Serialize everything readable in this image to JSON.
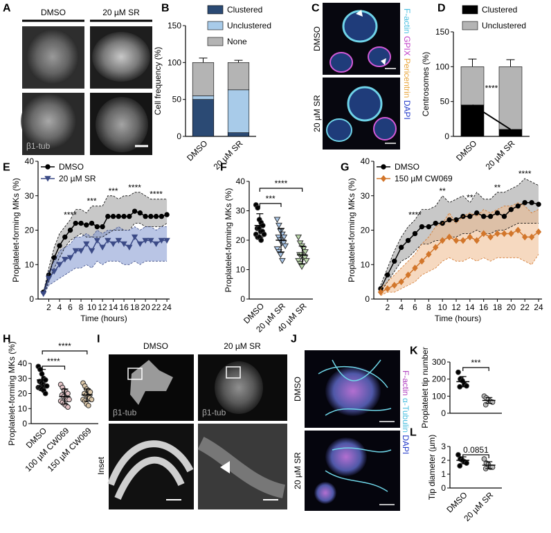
{
  "panel_labels": [
    "A",
    "B",
    "C",
    "D",
    "E",
    "F",
    "G",
    "H",
    "I",
    "J",
    "K",
    "L"
  ],
  "images": {
    "A": {
      "columns": [
        "DMSO",
        "20 µM SR"
      ],
      "stain": "β1-tub"
    },
    "C": {
      "rows": [
        "DMSO",
        "20 µM SR"
      ],
      "stains": [
        "F-actin",
        "GPIX",
        "Pericentrin",
        "DAPI"
      ]
    },
    "I": {
      "columns": [
        "DMSO",
        "20 µM SR"
      ],
      "stain": "β1-tub",
      "inset": "Inset"
    },
    "J": {
      "rows": [
        "DMSO",
        "20 µM SR"
      ],
      "stains": [
        "F-actin",
        "α-Tubulin",
        "DAPI"
      ]
    }
  },
  "chart_data": [
    {
      "type": "stacked_bar",
      "ylabel": "Cell frequency (%)",
      "categories": [
        "DMSO",
        "20 µM SR"
      ],
      "series": [
        {
          "name": "Clustered",
          "color": "#2b4a74",
          "values": [
            50,
            5
          ],
          "errors": [
            5,
            4
          ]
        },
        {
          "name": "Unclustered",
          "color": "#a8cbe9",
          "values": [
            5,
            58
          ],
          "errors": [
            4,
            6
          ]
        },
        {
          "name": "None",
          "color": "#b4b4b4",
          "values": [
            45,
            37
          ],
          "errors": [
            6,
            3
          ]
        }
      ],
      "ylim": [
        0,
        150
      ],
      "yticks": [
        0,
        50,
        100,
        150
      ]
    },
    {
      "type": "stacked_bar",
      "ylabel": "Centrosomes (%)",
      "categories": [
        "DMSO",
        "20 µM SR"
      ],
      "series": [
        {
          "name": "Clustered",
          "color": "#000000",
          "values": [
            45,
            10
          ],
          "errors": [
            11,
            10
          ]
        },
        {
          "name": "Unclustered",
          "color": "#b4b4b4",
          "values": [
            55,
            90
          ],
          "errors": [
            11,
            10
          ]
        }
      ],
      "annotation": "****",
      "connector": true,
      "ylim": [
        0,
        150
      ],
      "yticks": [
        0,
        50,
        100,
        150
      ]
    },
    {
      "type": "line",
      "xlabel": "Time (hours)",
      "ylabel": "Proplatelet-forming MKs (%)",
      "x": [
        1,
        2,
        3,
        4,
        5,
        6,
        7,
        8,
        9,
        10,
        11,
        12,
        13,
        14,
        15,
        16,
        17,
        18,
        19,
        20,
        21,
        22,
        23,
        24
      ],
      "series": [
        {
          "name": "DMSO",
          "color": "#000000",
          "band_color": "#9a9a9a",
          "marker": "circle",
          "values": [
            2,
            7,
            12,
            15.5,
            18,
            20,
            22,
            22,
            21.5,
            22,
            21,
            21,
            24,
            24,
            24,
            24,
            24,
            25.5,
            25,
            24,
            24,
            24,
            24,
            24.5
          ],
          "upper": [
            2,
            9,
            15,
            19,
            21,
            23,
            26,
            26,
            25,
            27,
            27,
            27,
            30,
            30,
            29,
            30,
            30,
            31,
            31,
            30,
            29,
            29,
            29,
            29
          ],
          "lower": [
            1,
            5,
            9,
            12,
            15,
            17,
            18,
            19,
            18,
            18,
            18,
            18,
            19,
            20,
            20,
            20,
            20,
            22,
            22,
            21,
            21,
            21,
            21,
            22
          ]
        },
        {
          "name": "20 µM SR",
          "color": "#3b4a86",
          "band_color": "#7f95cf",
          "marker": "triangle-down",
          "values": [
            1.5,
            6,
            8,
            10,
            11.5,
            12,
            14,
            14,
            16,
            14,
            17,
            15,
            17,
            16,
            17,
            16,
            15,
            18,
            16,
            17,
            17,
            16,
            17,
            17
          ],
          "upper": [
            2,
            8,
            11,
            14,
            15,
            16,
            18,
            18,
            19,
            18,
            20,
            19,
            20,
            20,
            21,
            20,
            20,
            21,
            20,
            21,
            21,
            20,
            21,
            21
          ],
          "lower": [
            1,
            4,
            5,
            6,
            7,
            8,
            9,
            9,
            10,
            9,
            11,
            10,
            11,
            11,
            11,
            10,
            10,
            11,
            10,
            11,
            11,
            11,
            11,
            11
          ]
        }
      ],
      "annotations": [
        "****",
        "***",
        "***",
        "****",
        "****"
      ],
      "xlim": [
        0,
        24.5
      ],
      "xticks": [
        2,
        4,
        6,
        8,
        10,
        12,
        14,
        16,
        18,
        20,
        22,
        24
      ],
      "ylim": [
        0,
        40
      ],
      "yticks": [
        0,
        10,
        20,
        30,
        40
      ]
    },
    {
      "type": "dot",
      "ylabel": "Proplatelet-forming MKs (%)",
      "categories": [
        "DMSO",
        "20 µM SR",
        "40 µM SR"
      ],
      "points": [
        [
          32,
          31,
          27,
          26,
          25,
          24,
          24,
          23,
          23,
          22,
          22,
          21,
          21,
          20
        ],
        [
          27,
          25,
          23,
          22,
          21,
          21,
          20,
          19,
          19,
          18,
          17,
          16,
          15,
          13
        ],
        [
          21,
          19,
          18,
          17,
          16,
          15,
          15,
          14,
          14,
          13,
          13,
          12,
          11
        ]
      ],
      "means": [
        25,
        20,
        15
      ],
      "sds": [
        4,
        4,
        3
      ],
      "colors": [
        "#000000",
        "#a9c6e8",
        "#b9d7a8"
      ],
      "markers": [
        "circle",
        "triangle-down",
        "triangle-down"
      ],
      "comparisons": [
        "***",
        "****"
      ],
      "ylim": [
        0,
        40
      ],
      "yticks": [
        0,
        10,
        20,
        30,
        40
      ]
    },
    {
      "type": "line",
      "xlabel": "Time (hours)",
      "ylabel": "Proplatelet-forming MKs (%)",
      "x": [
        1,
        2,
        3,
        4,
        5,
        6,
        7,
        8,
        9,
        10,
        11,
        12,
        13,
        14,
        15,
        16,
        17,
        18,
        19,
        20,
        21,
        22,
        23,
        24
      ],
      "series": [
        {
          "name": "DMSO",
          "color": "#000000",
          "band_color": "#9a9a9a",
          "marker": "circle",
          "values": [
            3,
            7,
            11,
            15,
            17,
            19,
            21,
            21,
            22,
            22,
            23,
            23,
            24,
            24,
            25,
            24,
            24,
            25,
            24,
            26,
            27,
            28,
            28,
            27.5
          ],
          "upper": [
            4,
            9,
            14,
            18,
            21,
            23,
            26,
            26,
            27,
            30,
            28,
            29,
            30,
            28,
            31,
            29,
            29,
            31,
            31,
            32,
            33,
            35,
            34,
            33
          ],
          "lower": [
            2,
            5,
            8,
            11,
            12,
            14,
            16,
            16,
            17,
            17,
            18,
            18,
            19,
            19,
            20,
            19,
            19,
            20,
            20,
            21,
            22,
            22,
            22,
            22
          ]
        },
        {
          "name": "150 µM CW069",
          "color": "#d2762b",
          "band_color": "#efb98c",
          "marker": "diamond",
          "values": [
            2,
            3,
            4,
            5,
            7,
            9,
            11,
            13,
            15,
            17,
            18,
            17,
            17,
            18,
            17,
            19,
            18,
            19,
            19,
            19,
            20,
            18,
            18,
            19.5
          ],
          "upper": [
            3,
            5,
            7,
            9,
            11,
            13,
            16,
            18,
            21,
            22,
            25,
            22,
            24,
            25,
            24,
            26,
            25,
            26,
            27,
            27,
            28,
            27,
            25,
            26
          ],
          "lower": [
            1,
            2,
            2,
            3,
            4,
            5,
            7,
            8,
            9,
            11,
            12,
            11,
            11,
            12,
            11,
            12,
            11,
            12,
            12,
            12,
            12,
            11,
            10,
            13
          ]
        }
      ],
      "annotations": [
        "****",
        "**",
        "**",
        "**",
        "****"
      ],
      "xlim": [
        0,
        24.5
      ],
      "xticks": [
        2,
        4,
        6,
        8,
        10,
        12,
        14,
        16,
        18,
        20,
        22,
        24
      ],
      "ylim": [
        0,
        40
      ],
      "yticks": [
        0,
        10,
        20,
        30,
        40
      ]
    },
    {
      "type": "dot",
      "ylabel": "Proplatelet-forming MKs (%)",
      "categories": [
        "DMSO",
        "100 µM CW069",
        "150 µM CW069"
      ],
      "points": [
        [
          38,
          36,
          33,
          30,
          29,
          28,
          27,
          26,
          25,
          25,
          24,
          24,
          23,
          22,
          20
        ],
        [
          26,
          24,
          22,
          21,
          20,
          19,
          18,
          17,
          16,
          16,
          15,
          14,
          13,
          12,
          11
        ],
        [
          27,
          25,
          23,
          22,
          21,
          20,
          19,
          18,
          17,
          16,
          16,
          15,
          13,
          12
        ]
      ],
      "means": [
        29,
        18,
        19
      ],
      "sds": [
        7,
        5,
        4
      ],
      "colors": [
        "#000000",
        "#e3c2c5",
        "#dcc7a8"
      ],
      "markers": [
        "circle",
        "circle",
        "circle"
      ],
      "comparisons": [
        "****",
        "****"
      ],
      "ylim": [
        0,
        40
      ],
      "yticks": [
        0,
        10,
        20,
        30,
        40
      ]
    },
    {
      "type": "dot",
      "ylabel": "Proplatelet tip number",
      "points": [
        [
          240,
          200,
          190,
          170,
          160,
          155
        ],
        [
          100,
          90,
          80,
          70,
          65,
          50
        ]
      ],
      "means": [
        185,
        75
      ],
      "sds": [
        30,
        17
      ],
      "colors": [
        "#000000",
        "#bbbbbb"
      ],
      "markers": [
        "circle",
        "circle"
      ],
      "comparisons": [
        "***"
      ],
      "ylim": [
        0,
        300
      ],
      "yticks": [
        0,
        100,
        200,
        300
      ]
    },
    {
      "type": "dot",
      "ylabel": "Tip diameter (µm)",
      "categories": [
        "DMSO",
        "20 µM SR"
      ],
      "points": [
        [
          2.4,
          2.1,
          2.0,
          1.9,
          1.8,
          1.6
        ],
        [
          2.1,
          1.8,
          1.7,
          1.5,
          1.5,
          1.4
        ]
      ],
      "means": [
        2.0,
        1.65
      ],
      "sds": [
        0.25,
        0.25
      ],
      "colors": [
        "#000000",
        "#bbbbbb"
      ],
      "markers": [
        "circle",
        "circle"
      ],
      "comparisons": [
        "0.0851"
      ],
      "ylim": [
        0,
        3
      ],
      "yticks": [
        0,
        1,
        2,
        3
      ]
    }
  ]
}
